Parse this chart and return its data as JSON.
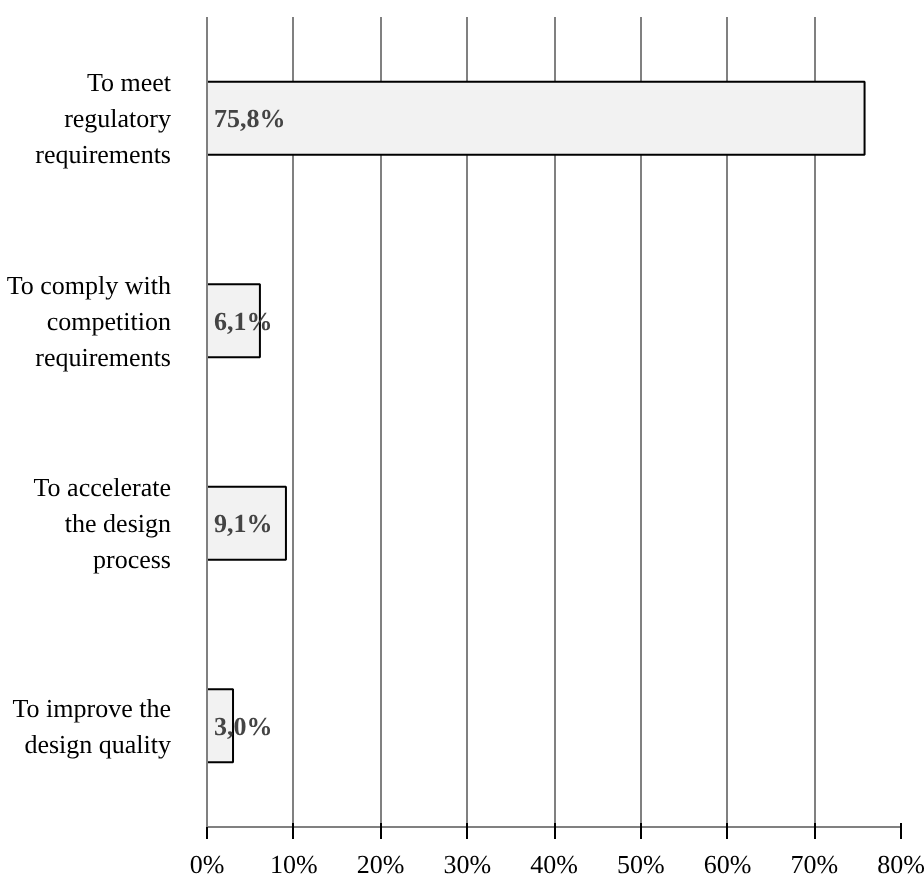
{
  "chart_data": {
    "type": "bar",
    "orientation": "horizontal",
    "categories": [
      "To meet regulatory requirements",
      "To comply with competition requirements",
      "To accelerate the design process",
      "To improve the design quality"
    ],
    "values": [
      75.8,
      6.1,
      9.1,
      3.0
    ],
    "value_labels": [
      "75,8%",
      "6,1%",
      "9,1%",
      "3,0%"
    ],
    "color": "#f2f2f2",
    "xlim": [
      0,
      80
    ],
    "xticks": [
      {
        "value": 0,
        "label": "0%"
      },
      {
        "value": 10,
        "label": "10%"
      },
      {
        "value": 20,
        "label": "20%"
      },
      {
        "value": 30,
        "label": "30%"
      },
      {
        "value": 40,
        "label": "40%"
      },
      {
        "value": 50,
        "label": "50%"
      },
      {
        "value": 60,
        "label": "60%"
      },
      {
        "value": 70,
        "label": "70%"
      },
      {
        "value": 80,
        "label": "80%"
      }
    ],
    "grid": "x"
  }
}
